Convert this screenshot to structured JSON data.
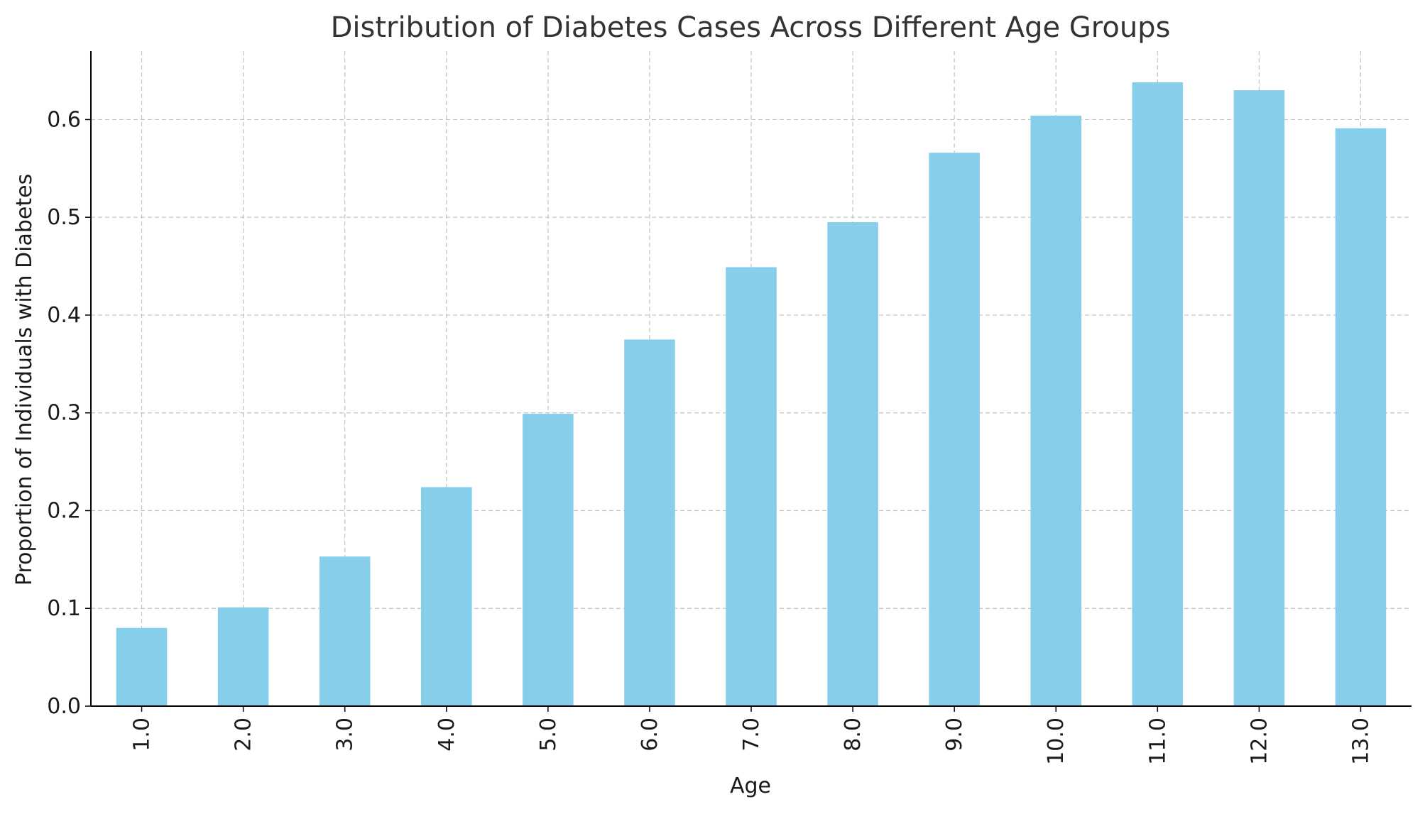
{
  "chart_data": {
    "type": "bar",
    "title": "Distribution of Diabetes Cases Across Different Age Groups",
    "xlabel": "Age",
    "ylabel": "Proportion of Individuals with Diabetes",
    "categories": [
      "1.0",
      "2.0",
      "3.0",
      "4.0",
      "5.0",
      "6.0",
      "7.0",
      "8.0",
      "9.0",
      "10.0",
      "11.0",
      "12.0",
      "13.0"
    ],
    "values": [
      0.08,
      0.101,
      0.153,
      0.224,
      0.299,
      0.375,
      0.449,
      0.495,
      0.566,
      0.604,
      0.638,
      0.63,
      0.591
    ],
    "ylim": [
      0,
      0.67
    ],
    "yticks": [
      "0.0",
      "0.1",
      "0.2",
      "0.3",
      "0.4",
      "0.5",
      "0.6"
    ],
    "grid": true,
    "bar_color": "#87ceeb"
  }
}
